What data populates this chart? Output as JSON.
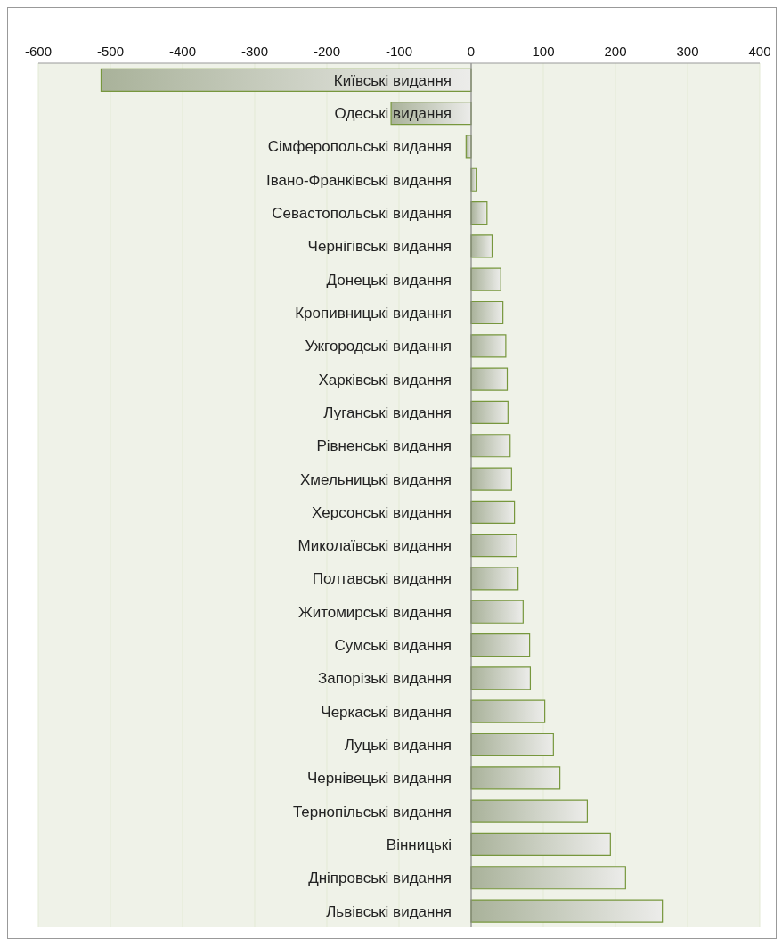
{
  "chart_data": {
    "type": "bar",
    "orientation": "horizontal",
    "categories": [
      "Київські видання",
      "Одеські видання",
      "Сімферопольські видання",
      "Івано-Франківські видання",
      "Севастопольські видання",
      "Чернігівські видання",
      "Донецькі видання",
      "Кропивницькі видання",
      "Ужгородські видання",
      "Харківські видання",
      "Луганські видання",
      "Рівненські видання",
      "Хмельницькі видання",
      "Херсонські видання",
      "Миколаївські видання",
      "Полтавські видання",
      "Житомирські видання",
      "Сумські видання",
      "Запорізькі видання",
      "Черкаські видання",
      "Луцькі видання",
      "Чернівецькі видання",
      "Тернопільські видання",
      "Вінницькі",
      "Дніпровські видання",
      "Львівські видання"
    ],
    "values": [
      -513,
      -111,
      -7,
      7,
      22,
      29,
      41,
      44,
      48,
      50,
      51,
      54,
      56,
      60,
      63,
      65,
      72,
      81,
      82,
      102,
      114,
      123,
      161,
      193,
      214,
      265
    ],
    "color": "#77973d",
    "xlim": [
      -600,
      400
    ],
    "xticks": [
      -600,
      -500,
      -400,
      -300,
      -200,
      -100,
      0,
      100,
      200,
      300,
      400
    ],
    "grid": "x"
  }
}
